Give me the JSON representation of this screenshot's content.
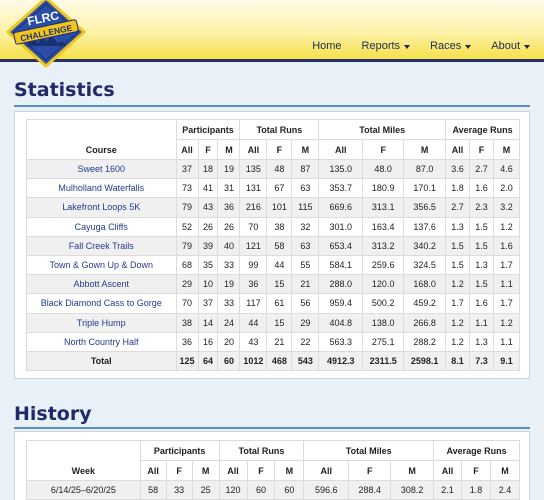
{
  "nav": {
    "logo_top": "FLRC",
    "logo_band": "CHALLENGE",
    "links": [
      "Home",
      "Reports",
      "Races",
      "About"
    ]
  },
  "statistics": {
    "title": "Statistics",
    "groups": [
      "Participants",
      "Total Runs",
      "Total Miles",
      "Average Runs"
    ],
    "course_header": "Course",
    "subheaders": [
      "All",
      "F",
      "M"
    ],
    "rows": [
      [
        "Sweet 1600",
        "37",
        "18",
        "19",
        "135",
        "48",
        "87",
        "135.0",
        "48.0",
        "87.0",
        "3.6",
        "2.7",
        "4.6"
      ],
      [
        "Mulholland Waterfalls",
        "73",
        "41",
        "31",
        "131",
        "67",
        "63",
        "353.7",
        "180.9",
        "170.1",
        "1.8",
        "1.6",
        "2.0"
      ],
      [
        "Lakefront Loops 5K",
        "79",
        "43",
        "36",
        "216",
        "101",
        "115",
        "669.6",
        "313.1",
        "356.5",
        "2.7",
        "2.3",
        "3.2"
      ],
      [
        "Cayuga Cliffs",
        "52",
        "26",
        "26",
        "70",
        "38",
        "32",
        "301.0",
        "163.4",
        "137.6",
        "1.3",
        "1.5",
        "1.2"
      ],
      [
        "Fall Creek Trails",
        "79",
        "39",
        "40",
        "121",
        "58",
        "63",
        "653.4",
        "313.2",
        "340.2",
        "1.5",
        "1.5",
        "1.6"
      ],
      [
        "Town & Gown Up & Down",
        "68",
        "35",
        "33",
        "99",
        "44",
        "55",
        "584.1",
        "259.6",
        "324.5",
        "1.5",
        "1.3",
        "1.7"
      ],
      [
        "Abbott Ascent",
        "29",
        "10",
        "19",
        "36",
        "15",
        "21",
        "288.0",
        "120.0",
        "168.0",
        "1.2",
        "1.5",
        "1.1"
      ],
      [
        "Black Diamond Cass to Gorge",
        "70",
        "37",
        "33",
        "117",
        "61",
        "56",
        "959.4",
        "500.2",
        "459.2",
        "1.7",
        "1.6",
        "1.7"
      ],
      [
        "Triple Hump",
        "38",
        "14",
        "24",
        "44",
        "15",
        "29",
        "404.8",
        "138.0",
        "266.8",
        "1.2",
        "1.1",
        "1.2"
      ],
      [
        "North Country Half",
        "36",
        "16",
        "20",
        "43",
        "21",
        "22",
        "563.3",
        "275.1",
        "288.2",
        "1.2",
        "1.3",
        "1.1"
      ]
    ],
    "total": [
      "Total",
      "125",
      "64",
      "60",
      "1012",
      "468",
      "543",
      "4912.3",
      "2311.5",
      "2598.1",
      "8.1",
      "7.3",
      "9.1"
    ]
  },
  "history": {
    "title": "History",
    "groups": [
      "Participants",
      "Total Runs",
      "Total Miles",
      "Average Runs"
    ],
    "week_header": "Week",
    "subheaders": [
      "All",
      "F",
      "M"
    ],
    "rows": [
      [
        "6/14/25–6/20/25",
        "58",
        "33",
        "25",
        "120",
        "60",
        "60",
        "596.6",
        "288.4",
        "308.2",
        "2.1",
        "1.8",
        "2.4"
      ]
    ]
  },
  "colors": {
    "title": "#1f2a6b",
    "link": "#243a8f",
    "navbar_border": "#25306b",
    "rule": "#5b8ec4"
  }
}
